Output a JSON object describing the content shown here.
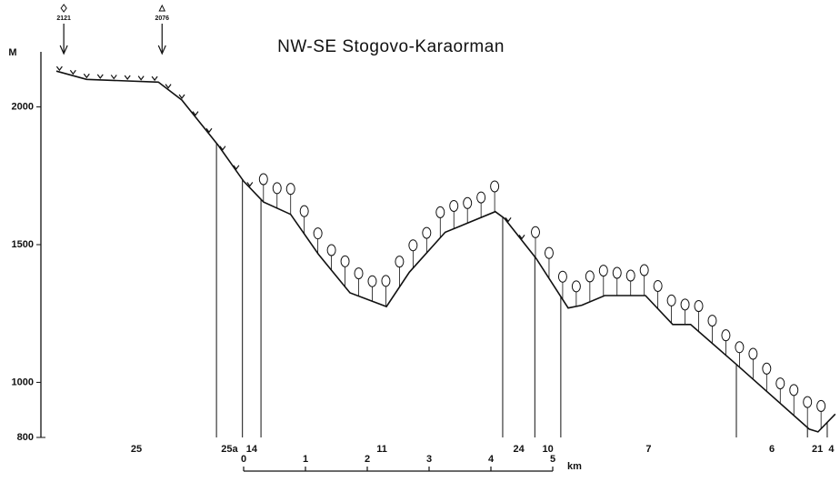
{
  "chart_data": {
    "type": "line",
    "title": "NW-SE  Stogovo-Karaorman",
    "y_label": "M",
    "x": [
      0,
      0.49,
      1.65,
      2.03,
      2.62,
      3.03,
      3.35,
      3.79,
      4.24,
      4.75,
      5.34,
      5.71,
      6.29,
      7.1,
      7.25,
      7.76,
      8.28,
      8.5,
      8.87,
      9.53,
      9.97,
      10.26,
      11.0,
      12.18,
      12.32,
      12.6
    ],
    "values": [
      2130,
      2100,
      2090,
      2025,
      1860,
      1730,
      1655,
      1610,
      1465,
      1325,
      1275,
      1400,
      1545,
      1620,
      1595,
      1450,
      1270,
      1280,
      1315,
      1315,
      1210,
      1210,
      1065,
      830,
      820,
      885
    ],
    "color": "#111111",
    "xlim": [
      0,
      12.6
    ],
    "ylim": [
      800,
      2200
    ],
    "yticks": [
      800,
      1000,
      1500,
      2000
    ],
    "zones": [
      "25",
      "25a",
      "14",
      "11",
      "24",
      "10",
      "7",
      "6",
      "21",
      "4"
    ],
    "zone_boundaries": [
      2.59,
      3.01,
      3.31,
      7.22,
      7.74,
      8.16,
      11.0,
      12.15,
      12.47
    ],
    "summits": [
      {
        "x": 0.12,
        "value": 2121
      },
      {
        "x": 1.71,
        "value": 2076
      }
    ],
    "scale_bar": {
      "ticks": [
        0,
        1,
        2,
        3,
        4,
        5
      ],
      "unit": "km"
    }
  }
}
